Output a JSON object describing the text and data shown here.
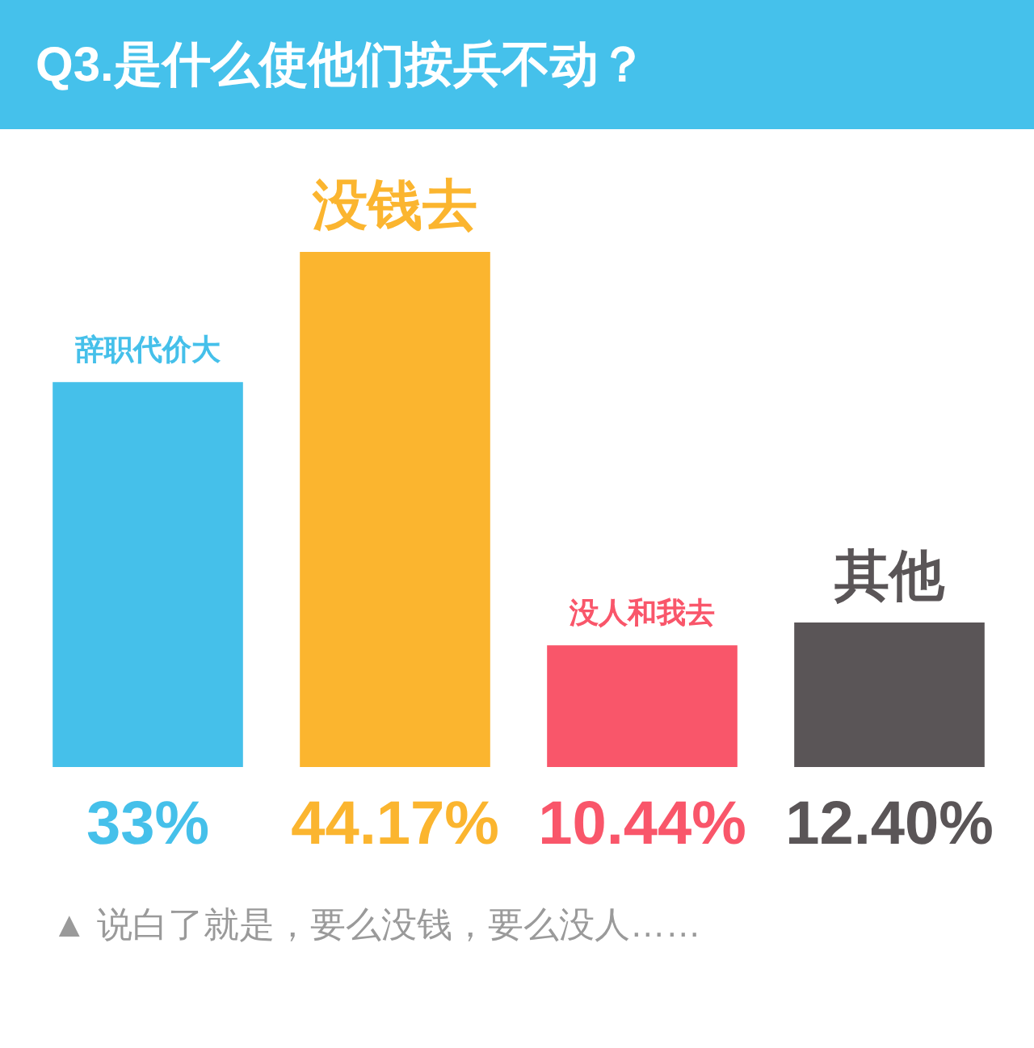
{
  "chart_data": {
    "type": "bar",
    "title": "Q3.是什么使他们按兵不动？",
    "categories": [
      "辞职代价大",
      "没钱去",
      "没人和我去",
      "其他"
    ],
    "values": [
      33,
      44.17,
      10.44,
      12.4
    ],
    "value_labels": [
      "33%",
      "44.17%",
      "10.44%",
      "12.40%"
    ],
    "colors": [
      "#45c0ea",
      "#fbb52f",
      "#f9566a",
      "#5a5557"
    ],
    "annotations": [
      "▲ 说白了就是，要么没钱，要么没人……"
    ],
    "legend": false
  }
}
